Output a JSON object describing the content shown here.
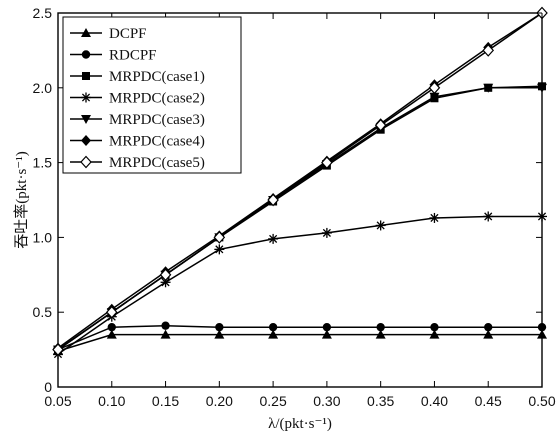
{
  "chart_data": {
    "type": "line",
    "x": [
      0.05,
      0.1,
      0.15,
      0.2,
      0.25,
      0.3,
      0.35,
      0.4,
      0.45,
      0.5
    ],
    "x_tick_labels": [
      "0.05",
      "0.10",
      "0.15",
      "0.20",
      "0.25",
      "0.30",
      "0.35",
      "0.40",
      "0.45",
      "0.50"
    ],
    "y_ticks": [
      0,
      0.5,
      1.0,
      1.5,
      2.0,
      2.5
    ],
    "y_tick_labels": [
      "0",
      "0.5",
      "1.0",
      "1.5",
      "2.0",
      "2.5"
    ],
    "xlim": [
      0.05,
      0.5
    ],
    "ylim": [
      0,
      2.5
    ],
    "xlabel": "λ/(pkt·s⁻¹)",
    "ylabel": "吞吐率(pkt·s⁻¹)",
    "grid": false,
    "legend_position": "top-left",
    "series": [
      {
        "name": "DCPF",
        "marker": "triangle",
        "color": "#000000",
        "values": [
          0.24,
          0.35,
          0.35,
          0.35,
          0.35,
          0.35,
          0.35,
          0.35,
          0.35,
          0.35
        ]
      },
      {
        "name": "RDCPF",
        "marker": "circle",
        "color": "#000000",
        "values": [
          0.25,
          0.4,
          0.41,
          0.4,
          0.4,
          0.4,
          0.4,
          0.4,
          0.4,
          0.4
        ]
      },
      {
        "name": "MRPDC(case1)",
        "marker": "square",
        "color": "#000000",
        "values": [
          0.25,
          0.5,
          0.75,
          1.0,
          1.24,
          1.48,
          1.72,
          1.93,
          2.0,
          2.01
        ]
      },
      {
        "name": "MRPDC(case2)",
        "marker": "asterisk",
        "color": "#000000",
        "values": [
          0.22,
          0.47,
          0.7,
          0.92,
          0.99,
          1.03,
          1.08,
          1.13,
          1.14,
          1.14
        ]
      },
      {
        "name": "MRPDC(case3)",
        "marker": "triangle-down",
        "color": "#000000",
        "values": [
          0.25,
          0.5,
          0.75,
          1.0,
          1.25,
          1.49,
          1.73,
          1.94,
          2.0,
          2.0
        ]
      },
      {
        "name": "MRPDC(case4)",
        "marker": "diamond",
        "color": "#000000",
        "values": [
          0.26,
          0.52,
          0.77,
          1.01,
          1.26,
          1.51,
          1.76,
          2.02,
          2.27,
          2.5
        ]
      },
      {
        "name": "MRPDC(case5)",
        "marker": "diamond-open",
        "color": "#000000",
        "values": [
          0.25,
          0.5,
          0.75,
          1.0,
          1.25,
          1.5,
          1.75,
          2.0,
          2.25,
          2.5
        ]
      }
    ]
  }
}
